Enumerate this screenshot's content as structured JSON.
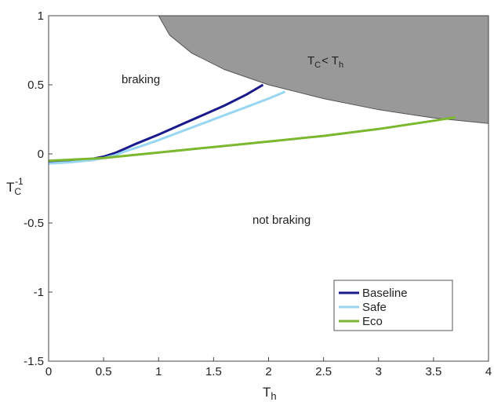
{
  "chart_data": {
    "type": "line",
    "xlim": [
      0,
      4
    ],
    "ylim": [
      -1.5,
      1
    ],
    "xticks": [
      "0",
      "0.5",
      "1",
      "1.5",
      "2",
      "2.5",
      "3",
      "3.5",
      "4"
    ],
    "yticks": [
      "-1.5",
      "-1",
      "-0.5",
      "0",
      "0.5",
      "1"
    ],
    "xlabel": {
      "base": "T",
      "sub": "h"
    },
    "ylabel": {
      "base": "T",
      "sub": "C",
      "sup": "-1"
    },
    "region": {
      "label_parts": {
        "t1": "T",
        "s1": "C",
        "lt": "< ",
        "t2": "T",
        "s2": "h"
      },
      "fill": "#999999",
      "boundary": {
        "x": [
          1.0,
          1.1,
          1.3,
          1.6,
          2.0,
          2.5,
          3.0,
          3.5,
          4.0
        ],
        "y": [
          1.0,
          0.86,
          0.73,
          0.61,
          0.5,
          0.4,
          0.32,
          0.26,
          0.22
        ]
      }
    },
    "annotations": {
      "upper": "braking",
      "lower": "not braking"
    },
    "legend_position": "bottom-right",
    "series": [
      {
        "name": "Baseline",
        "color": "#1a1a8c",
        "x": [
          0,
          0.2,
          0.4,
          0.5,
          0.6,
          0.7,
          0.8,
          1.0,
          1.2,
          1.4,
          1.6,
          1.8,
          1.95
        ],
        "y": [
          -0.06,
          -0.055,
          -0.035,
          -0.02,
          0.005,
          0.04,
          0.075,
          0.14,
          0.21,
          0.28,
          0.35,
          0.43,
          0.5
        ]
      },
      {
        "name": "Safe",
        "color": "#99d6f2",
        "x": [
          0,
          0.2,
          0.4,
          0.5,
          0.6,
          0.7,
          0.8,
          1.0,
          1.2,
          1.4,
          1.6,
          1.8,
          2.0,
          2.15
        ],
        "y": [
          -0.07,
          -0.06,
          -0.045,
          -0.03,
          -0.01,
          0.02,
          0.045,
          0.1,
          0.16,
          0.22,
          0.28,
          0.34,
          0.4,
          0.45
        ]
      },
      {
        "name": "Eco",
        "color": "#7cb82f",
        "x": [
          0,
          0.5,
          1.0,
          1.5,
          2.0,
          2.5,
          3.0,
          3.5,
          3.7
        ],
        "y": [
          -0.05,
          -0.03,
          0.01,
          0.05,
          0.09,
          0.13,
          0.18,
          0.24,
          0.265
        ]
      }
    ]
  }
}
